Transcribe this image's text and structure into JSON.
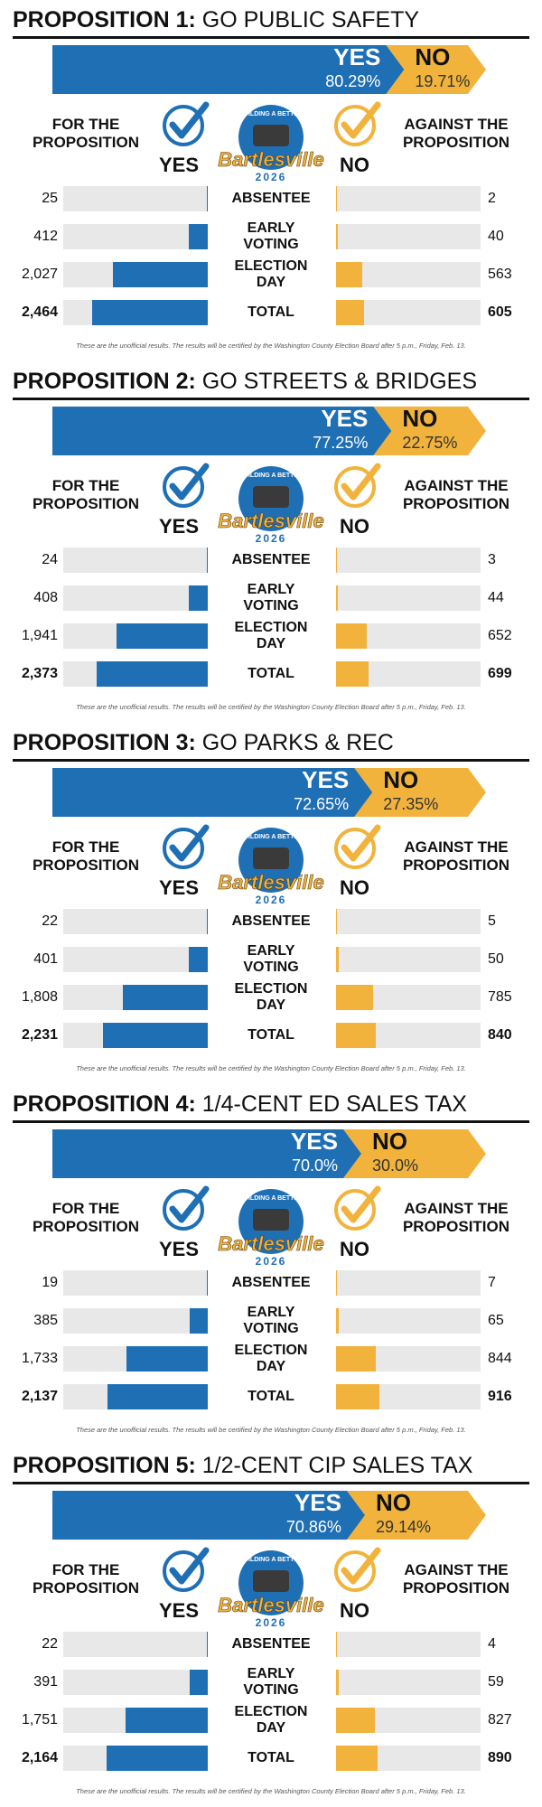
{
  "labels": {
    "yes": "YES",
    "no": "NO",
    "for": "FOR THE PROPOSITION",
    "against": "AGAINST THE PROPOSITION",
    "rows": [
      "ABSENTEE",
      "EARLY VOTING",
      "ELECTION DAY",
      "TOTAL"
    ],
    "footnote": "These are the unofficial results. The results will be certified by the Washington County Election Board after 5 p.m., Friday, Feb. 13."
  },
  "logo": {
    "top": "BUILDING A BETTER",
    "name": "Bartlesville",
    "year": "2026"
  },
  "propositions": [
    {
      "number": "PROPOSITION 1:",
      "title": "GO PUBLIC SAFETY",
      "yes_pct": {
        "value": 80.29,
        "label": "80.29%"
      },
      "no_pct": {
        "value": 19.71,
        "label": "19.71%"
      },
      "yes_votes": [
        25,
        412,
        {
          "value": 2027,
          "label": "2,027"
        },
        {
          "value": 2464,
          "label": "2,464"
        }
      ],
      "no_votes": [
        2,
        40,
        563,
        605
      ]
    },
    {
      "number": "PROPOSITION 2:",
      "title": "GO STREETS & BRIDGES",
      "yes_pct": {
        "value": 77.25,
        "label": "77.25%"
      },
      "no_pct": {
        "value": 22.75,
        "label": "22.75%"
      },
      "yes_votes": [
        24,
        408,
        {
          "value": 1941,
          "label": "1,941"
        },
        {
          "value": 2373,
          "label": "2,373"
        }
      ],
      "no_votes": [
        3,
        44,
        652,
        699
      ]
    },
    {
      "number": "PROPOSITION 3:",
      "title": "GO PARKS & REC",
      "yes_pct": {
        "value": 72.65,
        "label": "72.65%"
      },
      "no_pct": {
        "value": 27.35,
        "label": "27.35%"
      },
      "yes_votes": [
        22,
        401,
        {
          "value": 1808,
          "label": "1,808"
        },
        {
          "value": 2231,
          "label": "2,231"
        }
      ],
      "no_votes": [
        5,
        50,
        785,
        840
      ]
    },
    {
      "number": "PROPOSITION 4:",
      "title": "1/4-CENT ED SALES TAX",
      "yes_pct": {
        "value": 70.0,
        "label": "70.0%"
      },
      "no_pct": {
        "value": 30.0,
        "label": "30.0%"
      },
      "yes_votes": [
        19,
        385,
        {
          "value": 1733,
          "label": "1,733"
        },
        {
          "value": 2137,
          "label": "2,137"
        }
      ],
      "no_votes": [
        7,
        65,
        844,
        916
      ]
    },
    {
      "number": "PROPOSITION 5:",
      "title": "1/2-CENT CIP SALES TAX",
      "yes_pct": {
        "value": 70.86,
        "label": "70.86%"
      },
      "no_pct": {
        "value": 29.14,
        "label": "29.14%"
      },
      "yes_votes": [
        22,
        391,
        {
          "value": 1751,
          "label": "1,751"
        },
        {
          "value": 2164,
          "label": "2,164"
        }
      ],
      "no_votes": [
        4,
        59,
        827,
        890
      ]
    }
  ]
}
